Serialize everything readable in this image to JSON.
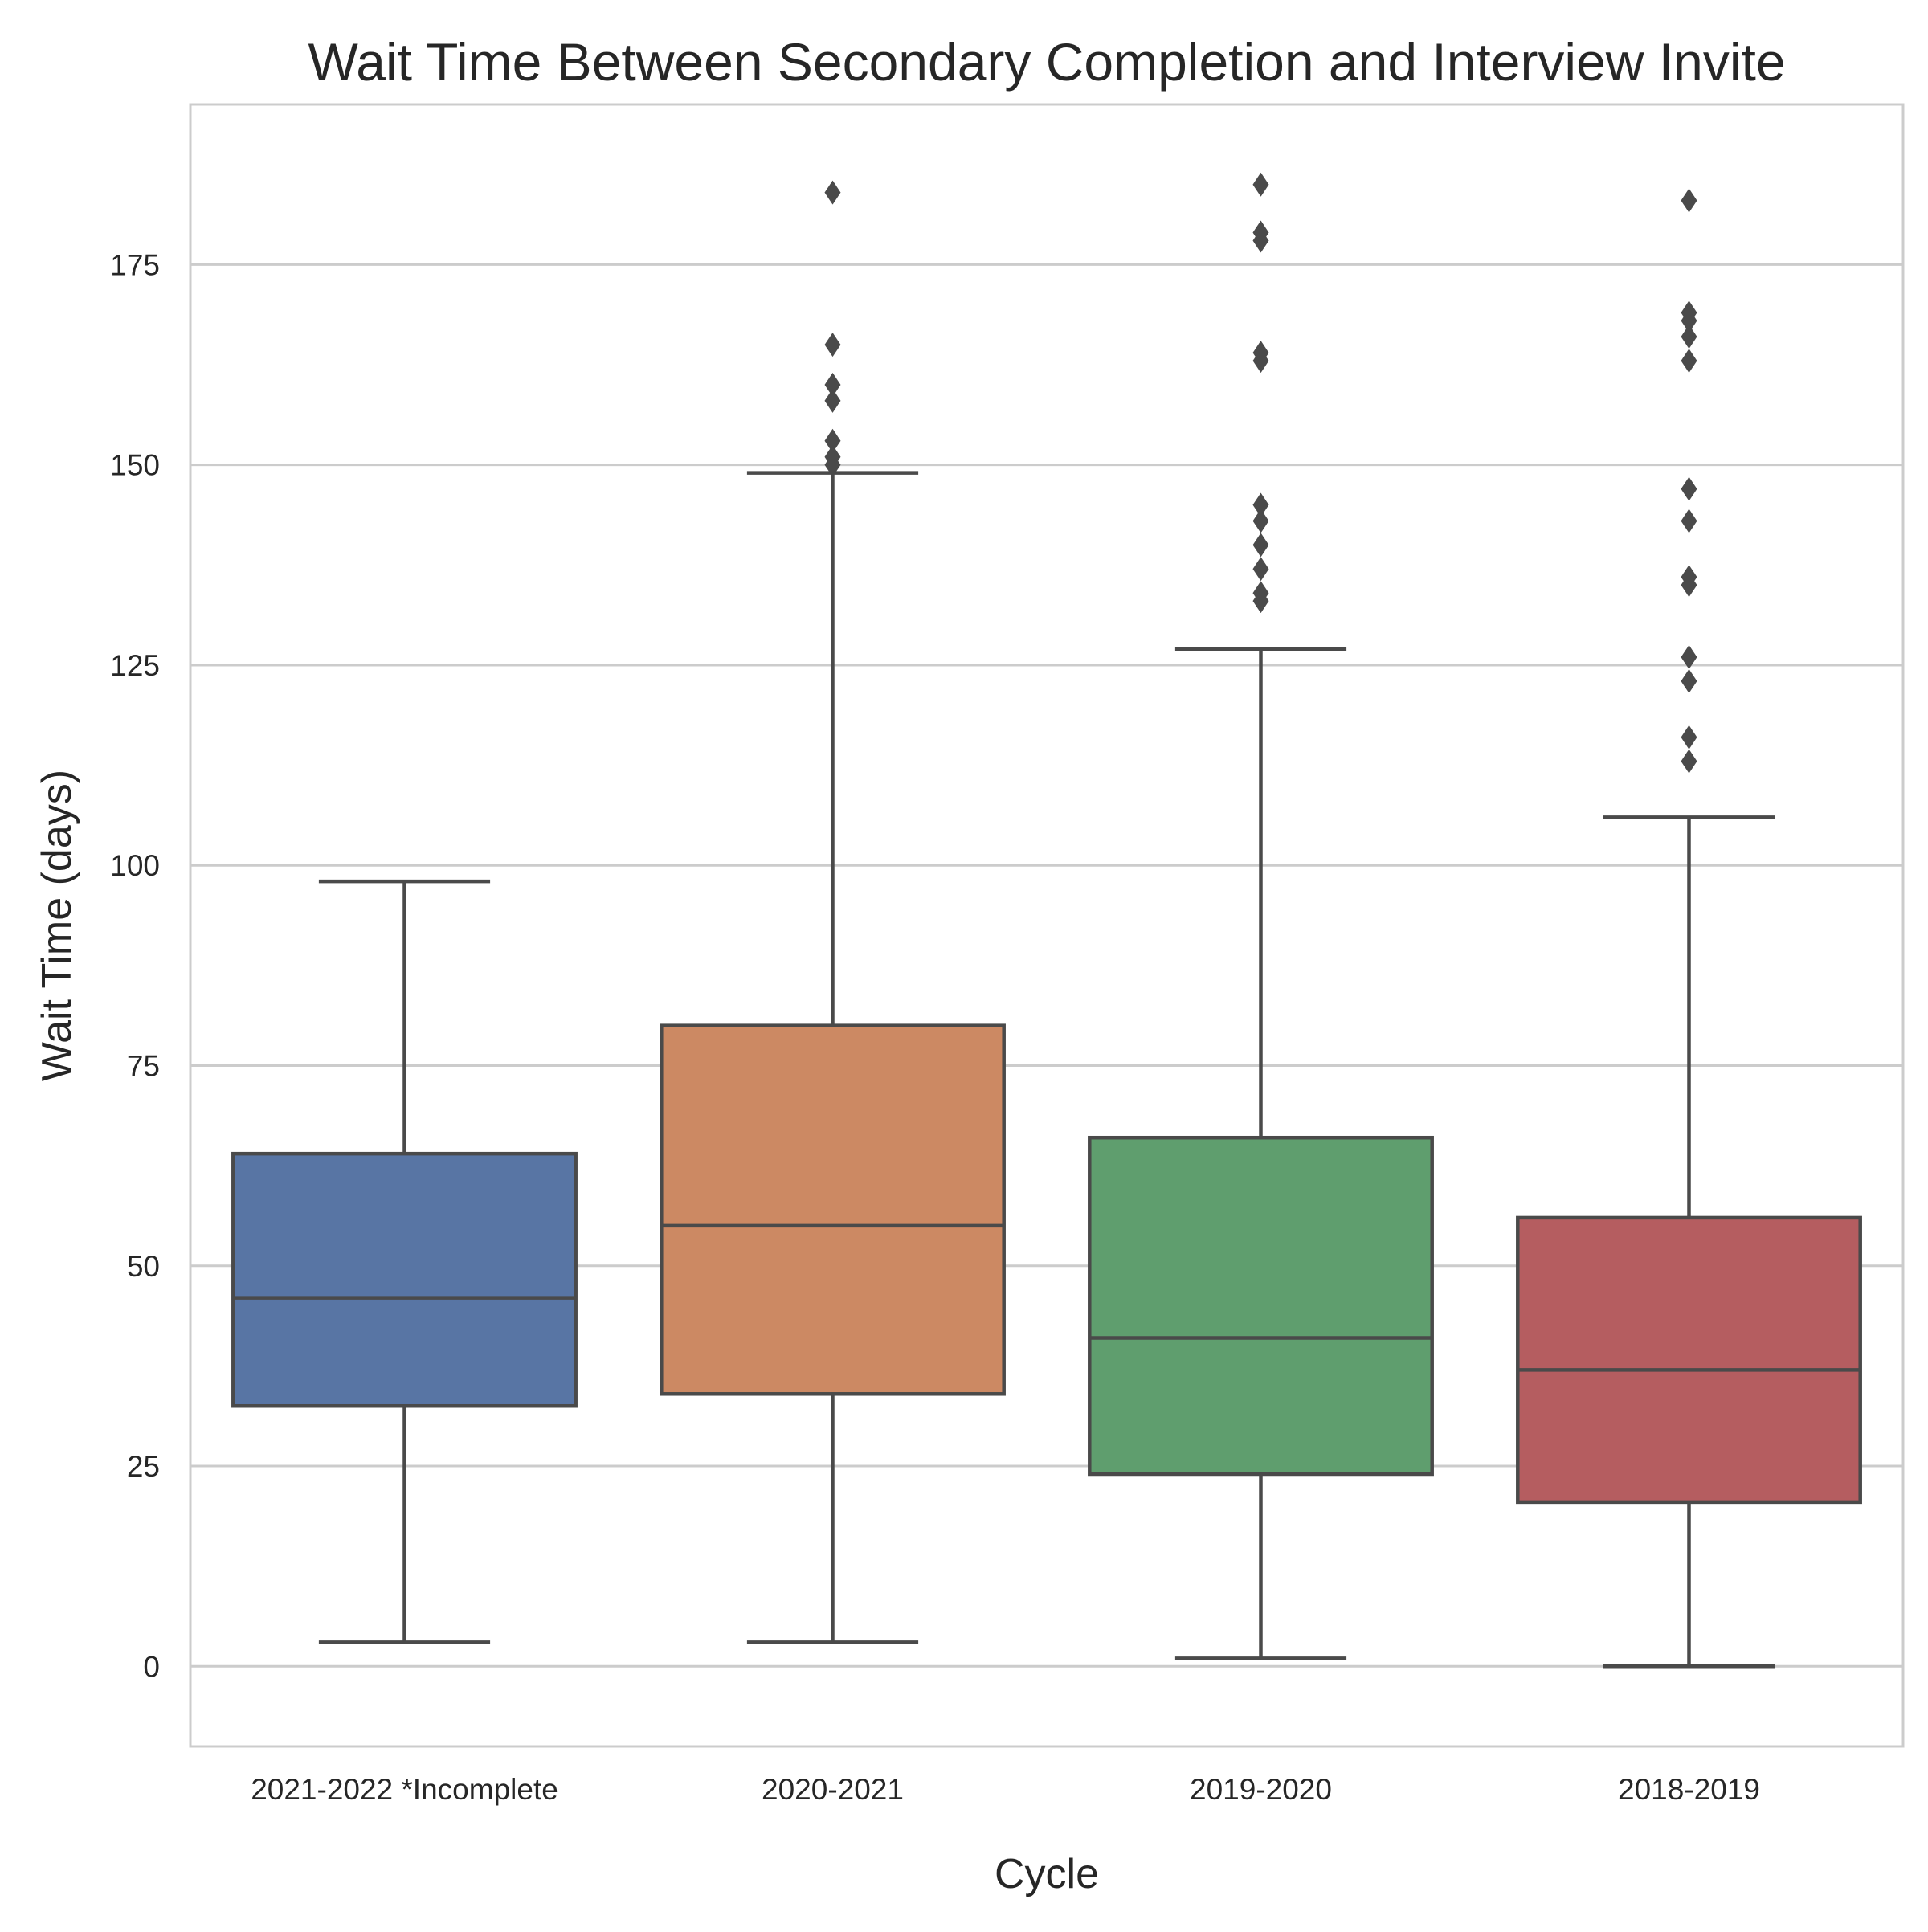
{
  "chart_data": {
    "type": "box",
    "title": "Wait Time Between Secondary Completion and Interview Invite",
    "xlabel": "Cycle",
    "ylabel": "Wait Time (days)",
    "ylim": [
      -10,
      195
    ],
    "yticks": [
      0,
      25,
      50,
      75,
      100,
      125,
      150,
      175
    ],
    "grid": true,
    "legend": "none",
    "colors": {
      "whisker": "#4a4a4a",
      "grid": "#cccccc",
      "frame": "#cccccc"
    },
    "boxes": [
      {
        "category": "2021-2022 *Incomplete",
        "color": "#5875a4",
        "whisker_low": 3,
        "q1": 32.5,
        "median": 46,
        "q3": 64,
        "whisker_high": 98,
        "outliers": []
      },
      {
        "category": "2020-2021",
        "color": "#cc8963",
        "whisker_low": 3,
        "q1": 34,
        "median": 55,
        "q3": 80,
        "whisker_high": 149,
        "outliers": [
          150,
          151,
          153,
          158,
          160,
          165,
          184
        ]
      },
      {
        "category": "2019-2020",
        "color": "#5f9e6e",
        "whisker_low": 1,
        "q1": 24,
        "median": 41,
        "q3": 66,
        "whisker_high": 127,
        "outliers": [
          133,
          134,
          137,
          140,
          143,
          145,
          163,
          164,
          178,
          179,
          185
        ]
      },
      {
        "category": "2018-2019",
        "color": "#b55d60",
        "whisker_low": 0,
        "q1": 20.5,
        "median": 37,
        "q3": 56,
        "whisker_high": 106,
        "outliers": [
          113,
          116,
          123,
          126,
          135,
          136,
          143,
          147,
          163,
          166,
          168,
          169,
          183
        ]
      }
    ]
  }
}
